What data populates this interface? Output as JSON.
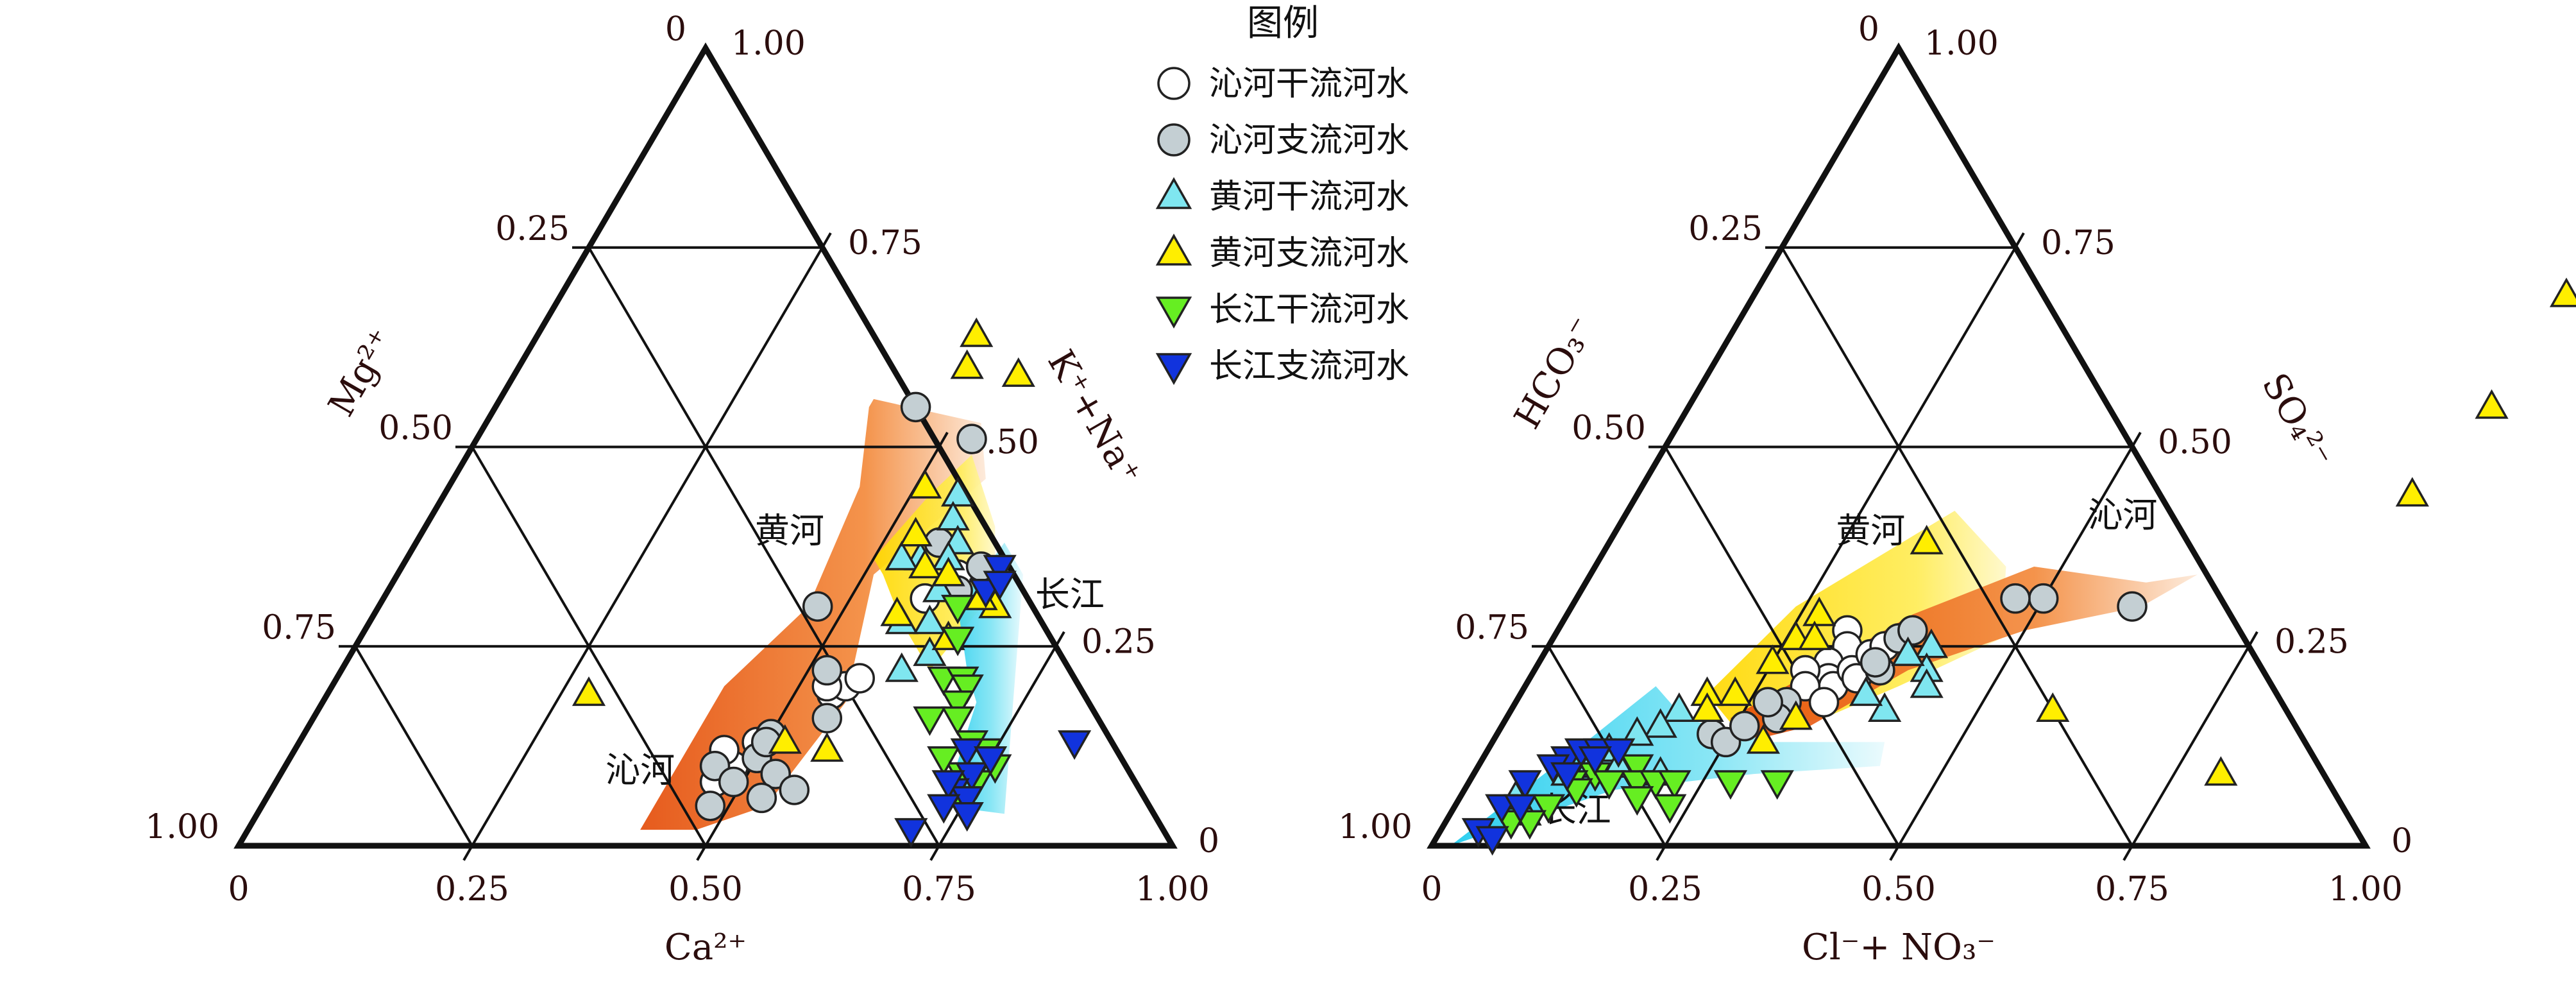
{
  "legend": {
    "title": "图例",
    "items": [
      {
        "key": "qin_main",
        "label": "沁河干流河水",
        "shape": "circle",
        "color": "#ffffff"
      },
      {
        "key": "qin_trib",
        "label": "沁河支流河水",
        "shape": "circle",
        "color": "#c4cfd3"
      },
      {
        "key": "yellow_main",
        "label": "黄河干流河水",
        "shape": "triangle-up",
        "color": "#7fe6f0"
      },
      {
        "key": "yellow_trib",
        "label": "黄河支流河水",
        "shape": "triangle-up",
        "color": "#ffee00"
      },
      {
        "key": "yangtze_main",
        "label": "长江干流河水",
        "shape": "triangle-down",
        "color": "#66ee22"
      },
      {
        "key": "yangtze_trib",
        "label": "长江支流河水",
        "shape": "triangle-down",
        "color": "#1133dd"
      }
    ]
  },
  "colors": {
    "frame": "#111111",
    "text": "#2b0d0d",
    "qin_field": "#ee6a1a",
    "yellow_field": "#ffe020",
    "yangtze_field": "#3fd8f0"
  },
  "chart_data": [
    {
      "type": "scatter",
      "subtype": "ternary",
      "axes": {
        "left": "Mg²⁺",
        "right": "K⁺+Na⁺",
        "bottom": "Ca²⁺"
      },
      "left_ticks": [
        "0",
        "0.25",
        "0.50",
        "0.75",
        "1.00"
      ],
      "right_ticks": [
        "1.00",
        "0.75",
        "0.50",
        "0.25",
        "0"
      ],
      "bottom_ticks": [
        "0",
        "0.25",
        "0.50",
        "0.75",
        "1.00"
      ],
      "region_labels": [
        {
          "text": "黄河",
          "x": 0.4,
          "y": 0.38
        },
        {
          "text": "长江",
          "x": 0.74,
          "y": 0.3
        },
        {
          "text": "沁河",
          "x": 0.39,
          "y": 0.08
        }
      ],
      "fields": [
        {
          "key": "qin",
          "points": [
            [
              0.4,
              0.56
            ],
            [
              0.53,
              0.53
            ],
            [
              0.57,
              0.46
            ],
            [
              0.51,
              0.34
            ],
            [
              0.56,
              0.18
            ],
            [
              0.54,
              0.05
            ],
            [
              0.48,
              0.02
            ],
            [
              0.42,
              0.02
            ],
            [
              0.42,
              0.2
            ],
            [
              0.46,
              0.3
            ],
            [
              0.44,
              0.45
            ],
            [
              0.4,
              0.55
            ]
          ]
        },
        {
          "key": "yellow",
          "points": [
            [
              0.54,
              0.49
            ],
            [
              0.61,
              0.4
            ],
            [
              0.65,
              0.32
            ],
            [
              0.63,
              0.22
            ],
            [
              0.57,
              0.28
            ],
            [
              0.52,
              0.34
            ],
            [
              0.5,
              0.36
            ],
            [
              0.52,
              0.44
            ]
          ]
        },
        {
          "key": "yangtze",
          "points": [
            [
              0.63,
              0.38
            ],
            [
              0.67,
              0.34
            ],
            [
              0.8,
              0.04
            ],
            [
              0.73,
              0.05
            ],
            [
              0.7,
              0.18
            ],
            [
              0.67,
              0.22
            ],
            [
              0.62,
              0.3
            ]
          ]
        }
      ],
      "series": [
        {
          "key": "qin_main",
          "points": [
            [
              0.47,
              0.08
            ],
            [
              0.48,
              0.1
            ],
            [
              0.46,
              0.12
            ],
            [
              0.49,
              0.13
            ],
            [
              0.54,
              0.19
            ],
            [
              0.55,
              0.2
            ],
            [
              0.56,
              0.21
            ],
            [
              0.53,
              0.2
            ],
            [
              0.6,
              0.34
            ],
            [
              0.58,
              0.31
            ]
          ]
        },
        {
          "key": "qin_trib",
          "points": [
            [
              0.45,
              0.55
            ],
            [
              0.53,
              0.51
            ],
            [
              0.56,
              0.38
            ],
            [
              0.47,
              0.3
            ],
            [
              0.52,
              0.22
            ],
            [
              0.55,
              0.16
            ],
            [
              0.5,
              0.14
            ],
            [
              0.5,
              0.11
            ],
            [
              0.46,
              0.1
            ],
            [
              0.49,
              0.08
            ],
            [
              0.53,
              0.09
            ],
            [
              0.56,
              0.07
            ],
            [
              0.48,
              0.05
            ],
            [
              0.53,
              0.06
            ],
            [
              0.62,
              0.35
            ],
            [
              0.61,
              0.32
            ],
            [
              0.5,
              0.13
            ]
          ]
        },
        {
          "key": "yellow_main",
          "points": [
            [
              0.55,
              0.44
            ],
            [
              0.56,
              0.41
            ],
            [
              0.58,
              0.38
            ],
            [
              0.55,
              0.36
            ],
            [
              0.58,
              0.36
            ],
            [
              0.53,
              0.36
            ],
            [
              0.57,
              0.28
            ],
            [
              0.6,
              0.28
            ],
            [
              0.59,
              0.32
            ],
            [
              0.62,
              0.24
            ],
            [
              0.6,
              0.22
            ]
          ]
        },
        {
          "key": "yellow_trib",
          "points": [
            [
              0.47,
              0.64
            ],
            [
              0.48,
              0.6
            ],
            [
              0.54,
              0.59
            ],
            [
              0.51,
              0.45
            ],
            [
              0.53,
              0.39
            ],
            [
              0.56,
              0.35
            ],
            [
              0.59,
              0.34
            ],
            [
              0.63,
              0.26
            ],
            [
              0.66,
              0.3
            ],
            [
              0.64,
              0.31
            ],
            [
              0.56,
              0.29
            ],
            [
              0.52,
              0.13
            ],
            [
              0.57,
              0.12
            ],
            [
              0.28,
              0.19
            ]
          ]
        },
        {
          "key": "yangtze_main",
          "points": [
            [
              0.62,
              0.3
            ],
            [
              0.64,
              0.26
            ],
            [
              0.65,
              0.21
            ],
            [
              0.67,
              0.21
            ],
            [
              0.68,
              0.2
            ],
            [
              0.68,
              0.18
            ],
            [
              0.66,
              0.16
            ],
            [
              0.69,
              0.16
            ],
            [
              0.72,
              0.13
            ],
            [
              0.74,
              0.12
            ],
            [
              0.73,
              0.09
            ],
            [
              0.76,
              0.1
            ],
            [
              0.75,
              0.08
            ],
            [
              0.7,
              0.11
            ],
            [
              0.74,
              0.06
            ]
          ]
        },
        {
          "key": "yangtze_trib",
          "points": [
            [
              0.64,
              0.35
            ],
            [
              0.64,
              0.32
            ],
            [
              0.65,
              0.33
            ],
            [
              0.72,
              0.12
            ],
            [
              0.74,
              0.09
            ],
            [
              0.75,
              0.11
            ],
            [
              0.73,
              0.07
            ],
            [
              0.75,
              0.06
            ],
            [
              0.72,
              0.08
            ],
            [
              0.71,
              0.02
            ],
            [
              0.76,
              0.04
            ],
            [
              0.83,
              0.13
            ],
            [
              0.73,
              0.05
            ]
          ]
        }
      ]
    },
    {
      "type": "scatter",
      "subtype": "ternary",
      "axes": {
        "left": "HCO₃⁻",
        "right": "SO₄²⁻",
        "bottom": "Cl⁻+ NO₃⁻"
      },
      "left_ticks": [
        "0",
        "0.25",
        "0.50",
        "0.75",
        "1.00"
      ],
      "right_ticks": [
        "1.00",
        "0.75",
        "0.50",
        "0.25",
        "0"
      ],
      "bottom_ticks": [
        "0",
        "0.25",
        "0.50",
        "0.75",
        "1.00"
      ],
      "region_labels": [
        {
          "text": "黄河",
          "x": 0.28,
          "y": 0.38
        },
        {
          "text": "沁河",
          "x": 0.54,
          "y": 0.4
        },
        {
          "text": "长江",
          "x": 0.14,
          "y": 0.03
        }
      ],
      "fields": [
        {
          "key": "yellow",
          "points": [
            [
              0.24,
              0.3
            ],
            [
              0.35,
              0.42
            ],
            [
              0.44,
              0.35
            ],
            [
              0.48,
              0.26
            ],
            [
              0.4,
              0.2
            ],
            [
              0.34,
              0.16
            ],
            [
              0.26,
              0.14
            ],
            [
              0.2,
              0.19
            ]
          ]
        },
        {
          "key": "qin",
          "points": [
            [
              0.24,
              0.16
            ],
            [
              0.3,
              0.22
            ],
            [
              0.37,
              0.29
            ],
            [
              0.47,
              0.35
            ],
            [
              0.6,
              0.33
            ],
            [
              0.65,
              0.34
            ],
            [
              0.61,
              0.3
            ],
            [
              0.5,
              0.27
            ],
            [
              0.4,
              0.22
            ],
            [
              0.33,
              0.15
            ],
            [
              0.27,
              0.13
            ]
          ]
        },
        {
          "key": "yangtze",
          "points": [
            [
              0.02,
              0.0
            ],
            [
              0.1,
              0.13
            ],
            [
              0.14,
              0.2
            ],
            [
              0.19,
              0.16
            ],
            [
              0.3,
              0.13
            ],
            [
              0.42,
              0.13
            ],
            [
              0.43,
              0.1
            ],
            [
              0.3,
              0.09
            ],
            [
              0.16,
              0.07
            ],
            [
              0.06,
              0.02
            ]
          ]
        }
      ],
      "series": [
        {
          "key": "qin_main",
          "points": [
            [
              0.31,
              0.27
            ],
            [
              0.32,
              0.25
            ],
            [
              0.31,
              0.23
            ],
            [
              0.32,
              0.21
            ],
            [
              0.33,
              0.2
            ],
            [
              0.34,
              0.22
            ],
            [
              0.35,
              0.24
            ],
            [
              0.36,
              0.25
            ],
            [
              0.35,
              0.21
            ],
            [
              0.29,
              0.22
            ],
            [
              0.3,
              0.2
            ],
            [
              0.33,
              0.18
            ]
          ]
        },
        {
          "key": "qin_trib",
          "points": [
            [
              0.6,
              0.3
            ],
            [
              0.5,
              0.31
            ],
            [
              0.47,
              0.31
            ],
            [
              0.29,
              0.18
            ],
            [
              0.29,
              0.16
            ],
            [
              0.23,
              0.14
            ],
            [
              0.25,
              0.13
            ],
            [
              0.26,
              0.15
            ],
            [
              0.27,
              0.18
            ],
            [
              0.37,
              0.26
            ],
            [
              0.38,
              0.27
            ],
            [
              0.37,
              0.22
            ],
            [
              0.36,
              0.23
            ]
          ]
        },
        {
          "key": "yellow_main",
          "points": [
            [
              0.41,
              0.25
            ],
            [
              0.42,
              0.22
            ],
            [
              0.43,
              0.2
            ],
            [
              0.4,
              0.17
            ],
            [
              0.37,
              0.19
            ],
            [
              0.39,
              0.24
            ],
            [
              0.18,
              0.17
            ],
            [
              0.17,
              0.15
            ],
            [
              0.15,
              0.14
            ],
            [
              0.13,
              0.12
            ],
            [
              0.12,
              0.1
            ],
            [
              0.1,
              0.09
            ],
            [
              0.15,
              0.1
            ],
            [
              0.2,
              0.09
            ],
            [
              0.08,
              0.04
            ],
            [
              0.06,
              0.06
            ]
          ]
        },
        {
          "key": "yellow_trib",
          "points": [
            [
              0.34,
              0.38
            ],
            [
              0.27,
              0.29
            ],
            [
              0.26,
              0.26
            ],
            [
              0.25,
              0.23
            ],
            [
              0.28,
              0.26
            ],
            [
              0.23,
              0.19
            ],
            [
              0.2,
              0.19
            ],
            [
              0.21,
              0.17
            ],
            [
              0.31,
              0.16
            ],
            [
              0.29,
              0.13
            ],
            [
              0.87,
              0.69
            ],
            [
              0.86,
              0.55
            ],
            [
              0.83,
              0.44
            ],
            [
              0.8,
              0.09
            ],
            [
              0.58,
              0.17
            ]
          ]
        },
        {
          "key": "yangtze_main",
          "points": [
            [
              0.13,
              0.09
            ],
            [
              0.17,
              0.1
            ],
            [
              0.11,
              0.08
            ],
            [
              0.12,
              0.07
            ],
            [
              0.15,
              0.08
            ],
            [
              0.18,
              0.08
            ],
            [
              0.2,
              0.08
            ],
            [
              0.22,
              0.08
            ],
            [
              0.28,
              0.08
            ],
            [
              0.33,
              0.08
            ],
            [
              0.1,
              0.05
            ],
            [
              0.19,
              0.06
            ],
            [
              0.23,
              0.05
            ],
            [
              0.07,
              0.03
            ],
            [
              0.09,
              0.03
            ]
          ]
        },
        {
          "key": "yangtze_trib",
          "points": [
            [
              0.09,
              0.11
            ],
            [
              0.1,
              0.12
            ],
            [
              0.12,
              0.12
            ],
            [
              0.14,
              0.12
            ],
            [
              0.08,
              0.1
            ],
            [
              0.06,
              0.08
            ],
            [
              0.1,
              0.09
            ],
            [
              0.05,
              0.05
            ],
            [
              0.07,
              0.05
            ],
            [
              0.04,
              0.02
            ],
            [
              0.06,
              0.01
            ],
            [
              0.12,
              0.11
            ]
          ]
        }
      ]
    }
  ]
}
